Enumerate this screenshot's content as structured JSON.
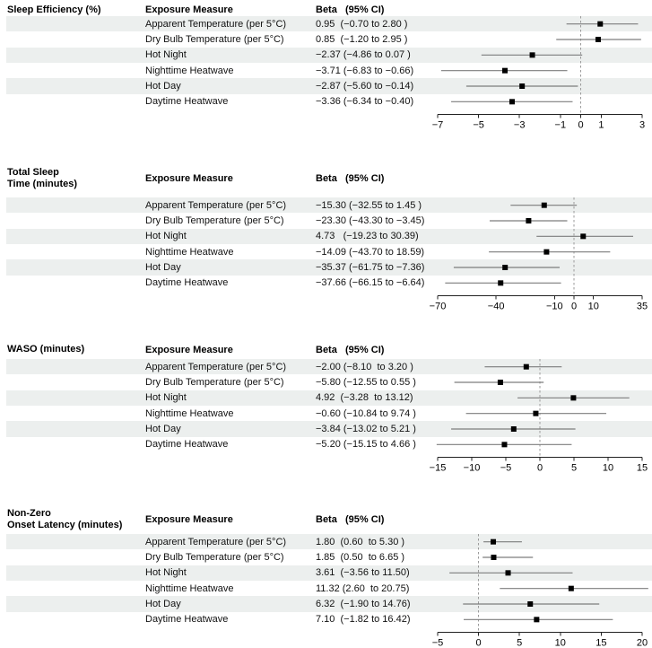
{
  "figure": {
    "column_headers": {
      "exposure": "Exposure Measure",
      "beta": "Beta   (95% CI)"
    }
  },
  "colors": {
    "stripe": "#ECEFEE",
    "ci_line": "#7d7d7d",
    "marker": "#000000",
    "zero_line": "#9a9a9a",
    "axis": "#222222",
    "header_text": "#000000",
    "body_text": "#111111"
  },
  "chart_data": [
    {
      "type": "scatter",
      "subtype": "forest-plot",
      "title": "Sleep Efficiency (%)",
      "title_lines": [
        "Sleep Efficiency (%)"
      ],
      "xlim": [
        -7,
        3
      ],
      "xticks": [
        -7,
        -5,
        -3,
        -1,
        0,
        1,
        3
      ],
      "reference_line": 0,
      "grid": false,
      "legend": false,
      "rows": [
        {
          "exposure": "Apparent Temperature (per 5°C)",
          "beta": 0.95,
          "ci_low": -0.7,
          "ci_high": 2.8,
          "beta_label": "0.95  (−0.70 to 2.80 )",
          "shaded": true
        },
        {
          "exposure": "Dry Bulb Temperature (per 5°C)",
          "beta": 0.85,
          "ci_low": -1.2,
          "ci_high": 2.95,
          "beta_label": "0.85  (−1.20 to 2.95 )",
          "shaded": false
        },
        {
          "exposure": "Hot Night",
          "beta": -2.37,
          "ci_low": -4.86,
          "ci_high": 0.07,
          "beta_label": "−2.37 (−4.86 to 0.07 )",
          "shaded": true
        },
        {
          "exposure": "Nighttime Heatwave",
          "beta": -3.71,
          "ci_low": -6.83,
          "ci_high": -0.66,
          "beta_label": "−3.71 (−6.83 to −0.66)",
          "shaded": false
        },
        {
          "exposure": "Hot Day",
          "beta": -2.87,
          "ci_low": -5.6,
          "ci_high": -0.14,
          "beta_label": "−2.87 (−5.60 to −0.14)",
          "shaded": true
        },
        {
          "exposure": "Daytime Heatwave",
          "beta": -3.36,
          "ci_low": -6.34,
          "ci_high": -0.4,
          "beta_label": "−3.36 (−6.34 to −0.40)",
          "shaded": false
        }
      ]
    },
    {
      "type": "scatter",
      "subtype": "forest-plot",
      "title": "Total Sleep Time (minutes)",
      "title_lines": [
        "Total Sleep",
        "Time (minutes)"
      ],
      "xlim": [
        -70,
        35
      ],
      "xticks": [
        -70,
        -40,
        -10,
        0,
        10,
        35
      ],
      "reference_line": 0,
      "grid": false,
      "legend": false,
      "rows": [
        {
          "exposure": "Apparent Temperature (per 5°C)",
          "beta": -15.3,
          "ci_low": -32.55,
          "ci_high": 1.45,
          "beta_label": "−15.30 (−32.55 to 1.45 )",
          "shaded": true
        },
        {
          "exposure": "Dry Bulb Temperature (per 5°C)",
          "beta": -23.3,
          "ci_low": -43.3,
          "ci_high": -3.45,
          "beta_label": "−23.30 (−43.30 to −3.45)",
          "shaded": false
        },
        {
          "exposure": "Hot Night",
          "beta": 4.73,
          "ci_low": -19.23,
          "ci_high": 30.39,
          "beta_label": "4.73   (−19.23 to 30.39)",
          "shaded": true
        },
        {
          "exposure": "Nighttime Heatwave",
          "beta": -14.09,
          "ci_low": -43.7,
          "ci_high": 18.59,
          "beta_label": "−14.09 (−43.70 to 18.59)",
          "shaded": false
        },
        {
          "exposure": "Hot Day",
          "beta": -35.37,
          "ci_low": -61.75,
          "ci_high": -7.36,
          "beta_label": "−35.37 (−61.75 to −7.36)",
          "shaded": true
        },
        {
          "exposure": "Daytime Heatwave",
          "beta": -37.66,
          "ci_low": -66.15,
          "ci_high": -6.64,
          "beta_label": "−37.66 (−66.15 to −6.64)",
          "shaded": false
        }
      ]
    },
    {
      "type": "scatter",
      "subtype": "forest-plot",
      "title": "WASO (minutes)",
      "title_lines": [
        "WASO (minutes)"
      ],
      "xlim": [
        -15,
        15
      ],
      "xticks": [
        -15,
        -10,
        -5,
        0,
        5,
        10,
        15
      ],
      "reference_line": 0,
      "grid": false,
      "legend": false,
      "rows": [
        {
          "exposure": "Apparent Temperature (per 5°C)",
          "beta": -2.0,
          "ci_low": -8.1,
          "ci_high": 3.2,
          "beta_label": "−2.00 (−8.10  to 3.20 )",
          "shaded": true
        },
        {
          "exposure": "Dry Bulb Temperature (per 5°C)",
          "beta": -5.8,
          "ci_low": -12.55,
          "ci_high": 0.55,
          "beta_label": "−5.80 (−12.55 to 0.55 )",
          "shaded": false
        },
        {
          "exposure": "Hot Night",
          "beta": 4.92,
          "ci_low": -3.28,
          "ci_high": 13.12,
          "beta_label": "4.92  (−3.28  to 13.12)",
          "shaded": true
        },
        {
          "exposure": "Nighttime Heatwave",
          "beta": -0.6,
          "ci_low": -10.84,
          "ci_high": 9.74,
          "beta_label": "−0.60 (−10.84 to 9.74 )",
          "shaded": false
        },
        {
          "exposure": "Hot Day",
          "beta": -3.84,
          "ci_low": -13.02,
          "ci_high": 5.21,
          "beta_label": "−3.84 (−13.02 to 5.21 )",
          "shaded": true
        },
        {
          "exposure": "Daytime Heatwave",
          "beta": -5.2,
          "ci_low": -15.15,
          "ci_high": 4.66,
          "beta_label": "−5.20 (−15.15 to 4.66 )",
          "shaded": false
        }
      ]
    },
    {
      "type": "scatter",
      "subtype": "forest-plot",
      "title": "Non-Zero Onset Latency (minutes)",
      "title_lines": [
        "Non-Zero",
        "Onset Latency (minutes)"
      ],
      "xlim": [
        -5,
        20
      ],
      "xticks": [
        -5,
        0,
        5,
        10,
        15,
        20
      ],
      "reference_line": 0,
      "grid": false,
      "legend": false,
      "rows": [
        {
          "exposure": "Apparent Temperature (per 5°C)",
          "beta": 1.8,
          "ci_low": 0.6,
          "ci_high": 5.3,
          "beta_label": "1.80  (0.60  to 5.30 )",
          "shaded": true
        },
        {
          "exposure": "Dry Bulb Temperature (per 5°C)",
          "beta": 1.85,
          "ci_low": 0.5,
          "ci_high": 6.65,
          "beta_label": "1.85  (0.50  to 6.65 )",
          "shaded": false
        },
        {
          "exposure": "Hot Night",
          "beta": 3.61,
          "ci_low": -3.56,
          "ci_high": 11.5,
          "beta_label": "3.61  (−3.56 to 11.50)",
          "shaded": true
        },
        {
          "exposure": "Nighttime Heatwave",
          "beta": 11.32,
          "ci_low": 2.6,
          "ci_high": 20.75,
          "beta_label": "11.32 (2.60  to 20.75)",
          "shaded": false
        },
        {
          "exposure": "Hot Day",
          "beta": 6.32,
          "ci_low": -1.9,
          "ci_high": 14.76,
          "beta_label": "6.32  (−1.90 to 14.76)",
          "shaded": true
        },
        {
          "exposure": "Daytime Heatwave",
          "beta": 7.1,
          "ci_low": -1.82,
          "ci_high": 16.42,
          "beta_label": "7.10  (−1.82 to 16.42)",
          "shaded": false
        }
      ]
    }
  ]
}
